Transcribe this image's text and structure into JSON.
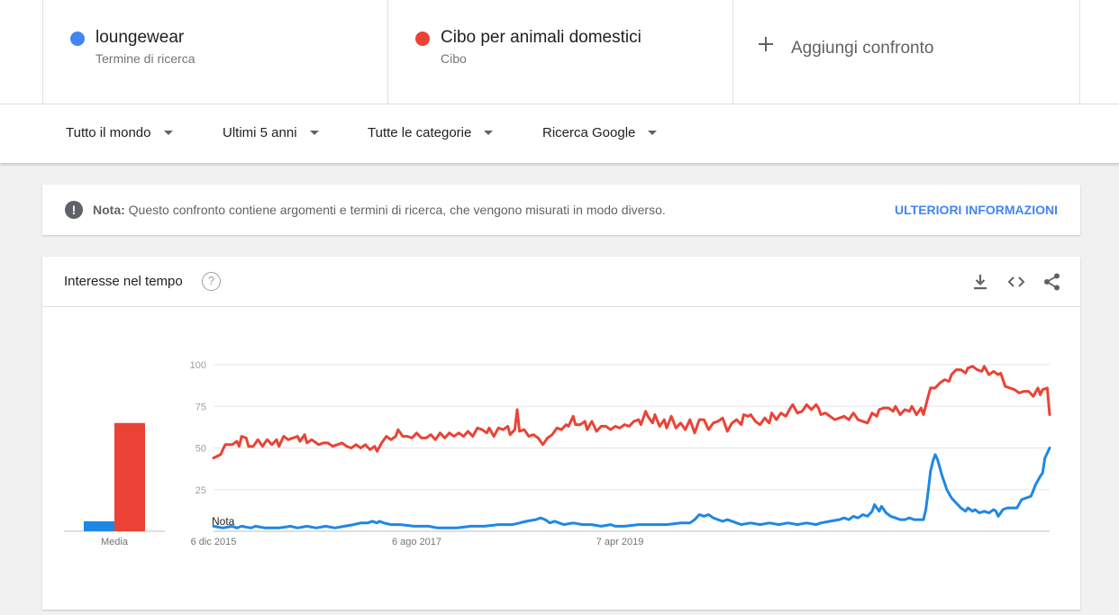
{
  "compare": {
    "terms": [
      {
        "name": "loungewear",
        "type": "Termine di ricerca",
        "color": "#4285f4"
      },
      {
        "name": "Cibo per animali domestici",
        "type": "Cibo",
        "color": "#ea4335"
      }
    ],
    "add_label": "Aggiungi confronto"
  },
  "filters": {
    "region": "Tutto il mondo",
    "period": "Ultimi 5 anni",
    "category": "Tutte le categorie",
    "source": "Ricerca Google"
  },
  "note": {
    "bold": "Nota:",
    "text": "Questo confronto contiene argomenti e termini di ricerca, che vengono misurati in modo diverso.",
    "link": "ULTERIORI INFORMAZIONI"
  },
  "chart": {
    "title": "Interesse nel tempo",
    "help_icon": "help-circle-icon",
    "actions": [
      "download-icon",
      "embed-code-icon",
      "share-icon"
    ]
  },
  "chart_data": {
    "type": "line",
    "ylim": [
      0,
      100
    ],
    "yticks": [
      25,
      50,
      75,
      100
    ],
    "grid": true,
    "x_tick_labels": [
      {
        "label": "6 dic 2015",
        "index": 0
      },
      {
        "label": "6 ago 2017",
        "index": 87
      },
      {
        "label": "7 apr 2019",
        "index": 174
      }
    ],
    "annotation": {
      "label": "Nota",
      "index": 0
    },
    "average": {
      "label": "Media",
      "values": [
        {
          "name": "loungewear",
          "value": 6
        },
        {
          "name": "Cibo per animali domestici",
          "value": 65
        }
      ]
    },
    "series": [
      {
        "name": "Cibo per animali domestici",
        "color": "#ea4335",
        "keys": [
          [
            0,
            44
          ],
          [
            3,
            46
          ],
          [
            5,
            52
          ],
          [
            8,
            52
          ],
          [
            10,
            54
          ],
          [
            11,
            51
          ],
          [
            12,
            57
          ],
          [
            14,
            56
          ],
          [
            15,
            51
          ],
          [
            17,
            51
          ],
          [
            19,
            55
          ],
          [
            21,
            51
          ],
          [
            23,
            55
          ],
          [
            25,
            52
          ],
          [
            27,
            55
          ],
          [
            28,
            51
          ],
          [
            30,
            57
          ],
          [
            32,
            55
          ],
          [
            34,
            56
          ],
          [
            36,
            57
          ],
          [
            37,
            54
          ],
          [
            39,
            58
          ],
          [
            40,
            53
          ],
          [
            42,
            55
          ],
          [
            45,
            52
          ],
          [
            47,
            53
          ],
          [
            49,
            53
          ],
          [
            51,
            51
          ],
          [
            53,
            52
          ],
          [
            55,
            53
          ],
          [
            57,
            51
          ],
          [
            59,
            50
          ],
          [
            61,
            52
          ],
          [
            63,
            50
          ],
          [
            65,
            52
          ],
          [
            67,
            49
          ],
          [
            69,
            51
          ],
          [
            70,
            48
          ],
          [
            72,
            53
          ],
          [
            74,
            57
          ],
          [
            76,
            55
          ],
          [
            78,
            57
          ],
          [
            79,
            61
          ],
          [
            81,
            57
          ],
          [
            83,
            57
          ],
          [
            85,
            56
          ],
          [
            87,
            59
          ],
          [
            89,
            56
          ],
          [
            91,
            56
          ],
          [
            93,
            58
          ],
          [
            95,
            55
          ],
          [
            97,
            59
          ],
          [
            99,
            56
          ],
          [
            101,
            59
          ],
          [
            103,
            57
          ],
          [
            105,
            59
          ],
          [
            107,
            57
          ],
          [
            109,
            60
          ],
          [
            111,
            57
          ],
          [
            113,
            62
          ],
          [
            115,
            61
          ],
          [
            117,
            59
          ],
          [
            118,
            62
          ],
          [
            120,
            57
          ],
          [
            122,
            62
          ],
          [
            124,
            61
          ],
          [
            126,
            63
          ],
          [
            127,
            58
          ],
          [
            129,
            61
          ],
          [
            130,
            73
          ],
          [
            131,
            60
          ],
          [
            133,
            61
          ],
          [
            135,
            57
          ],
          [
            137,
            58
          ],
          [
            139,
            56
          ],
          [
            141,
            52
          ],
          [
            143,
            56
          ],
          [
            145,
            58
          ],
          [
            147,
            62
          ],
          [
            149,
            61
          ],
          [
            151,
            64
          ],
          [
            152,
            63
          ],
          [
            154,
            69
          ],
          [
            155,
            64
          ],
          [
            157,
            64
          ],
          [
            159,
            66
          ],
          [
            160,
            61
          ],
          [
            162,
            66
          ],
          [
            164,
            60
          ],
          [
            166,
            63
          ],
          [
            168,
            63
          ],
          [
            170,
            61
          ],
          [
            172,
            63
          ],
          [
            174,
            62
          ],
          [
            176,
            64
          ],
          [
            178,
            63
          ],
          [
            180,
            66
          ],
          [
            182,
            67
          ],
          [
            183,
            64
          ],
          [
            185,
            72
          ],
          [
            186,
            69
          ],
          [
            188,
            65
          ],
          [
            189,
            70
          ],
          [
            191,
            63
          ],
          [
            193,
            67
          ],
          [
            194,
            62
          ],
          [
            196,
            69
          ],
          [
            198,
            62
          ],
          [
            200,
            65
          ],
          [
            202,
            61
          ],
          [
            204,
            67
          ],
          [
            206,
            59
          ],
          [
            208,
            67
          ],
          [
            210,
            67
          ],
          [
            212,
            61
          ],
          [
            214,
            65
          ],
          [
            216,
            66
          ],
          [
            218,
            68
          ],
          [
            220,
            60
          ],
          [
            222,
            65
          ],
          [
            224,
            67
          ],
          [
            226,
            64
          ],
          [
            227,
            70
          ],
          [
            229,
            69
          ],
          [
            230,
            70
          ],
          [
            232,
            66
          ],
          [
            234,
            64
          ],
          [
            236,
            68
          ],
          [
            238,
            65
          ],
          [
            239,
            71
          ],
          [
            241,
            67
          ],
          [
            243,
            71
          ],
          [
            245,
            69
          ],
          [
            247,
            74
          ],
          [
            248,
            76
          ],
          [
            250,
            71
          ],
          [
            252,
            72
          ],
          [
            254,
            76
          ],
          [
            256,
            73
          ],
          [
            258,
            76
          ],
          [
            259,
            74
          ],
          [
            260,
            70
          ],
          [
            262,
            71
          ],
          [
            264,
            69
          ],
          [
            266,
            67
          ],
          [
            268,
            68
          ],
          [
            270,
            69
          ],
          [
            272,
            67
          ],
          [
            274,
            71
          ],
          [
            276,
            67
          ],
          [
            278,
            66
          ],
          [
            280,
            65
          ],
          [
            282,
            71
          ],
          [
            284,
            69
          ],
          [
            285,
            73
          ],
          [
            287,
            74
          ],
          [
            289,
            74
          ],
          [
            291,
            72
          ],
          [
            292,
            75
          ],
          [
            294,
            70
          ],
          [
            296,
            73
          ],
          [
            298,
            72
          ],
          [
            299,
            75
          ],
          [
            301,
            70
          ],
          [
            303,
            74
          ],
          [
            304,
            70
          ],
          [
            306,
            81
          ],
          [
            307,
            86
          ],
          [
            309,
            86
          ],
          [
            311,
            89
          ],
          [
            313,
            91
          ],
          [
            315,
            90
          ],
          [
            316,
            94
          ],
          [
            318,
            97
          ],
          [
            320,
            97
          ],
          [
            322,
            95
          ],
          [
            323,
            98
          ],
          [
            325,
            99
          ],
          [
            327,
            97
          ],
          [
            329,
            96
          ],
          [
            330,
            99
          ],
          [
            332,
            94
          ],
          [
            334,
            96
          ],
          [
            336,
            94
          ],
          [
            337,
            95
          ],
          [
            339,
            87
          ],
          [
            341,
            86
          ],
          [
            343,
            85
          ],
          [
            345,
            83
          ],
          [
            347,
            84
          ],
          [
            349,
            84
          ],
          [
            351,
            81
          ],
          [
            353,
            86
          ],
          [
            354,
            82
          ],
          [
            355,
            85
          ],
          [
            357,
            86
          ],
          [
            358,
            70
          ]
        ]
      },
      {
        "name": "loungewear",
        "color": "#1e88e5",
        "keys": [
          [
            0,
            3
          ],
          [
            4,
            2
          ],
          [
            8,
            3
          ],
          [
            10,
            2
          ],
          [
            12,
            3
          ],
          [
            16,
            2
          ],
          [
            18,
            3
          ],
          [
            22,
            2
          ],
          [
            28,
            2
          ],
          [
            33,
            3
          ],
          [
            36,
            2
          ],
          [
            40,
            3
          ],
          [
            44,
            2
          ],
          [
            48,
            3
          ],
          [
            52,
            2
          ],
          [
            56,
            3
          ],
          [
            60,
            4
          ],
          [
            63,
            5
          ],
          [
            66,
            5
          ],
          [
            68,
            6
          ],
          [
            70,
            5
          ],
          [
            71,
            6
          ],
          [
            73,
            5
          ],
          [
            76,
            4
          ],
          [
            80,
            4
          ],
          [
            86,
            3
          ],
          [
            92,
            3
          ],
          [
            96,
            2
          ],
          [
            104,
            2
          ],
          [
            110,
            3
          ],
          [
            116,
            3
          ],
          [
            122,
            4
          ],
          [
            128,
            4
          ],
          [
            134,
            6
          ],
          [
            138,
            7
          ],
          [
            140,
            8
          ],
          [
            142,
            7
          ],
          [
            144,
            5
          ],
          [
            146,
            6
          ],
          [
            150,
            4
          ],
          [
            154,
            5
          ],
          [
            158,
            4
          ],
          [
            162,
            4
          ],
          [
            166,
            3
          ],
          [
            170,
            4
          ],
          [
            172,
            3
          ],
          [
            176,
            3
          ],
          [
            182,
            4
          ],
          [
            188,
            4
          ],
          [
            194,
            4
          ],
          [
            200,
            5
          ],
          [
            204,
            5
          ],
          [
            206,
            7
          ],
          [
            208,
            10
          ],
          [
            210,
            9
          ],
          [
            212,
            10
          ],
          [
            214,
            8
          ],
          [
            216,
            7
          ],
          [
            218,
            6
          ],
          [
            220,
            7
          ],
          [
            222,
            6
          ],
          [
            226,
            4
          ],
          [
            230,
            5
          ],
          [
            234,
            4
          ],
          [
            238,
            5
          ],
          [
            242,
            4
          ],
          [
            246,
            5
          ],
          [
            250,
            4
          ],
          [
            254,
            5
          ],
          [
            258,
            4
          ],
          [
            260,
            5
          ],
          [
            264,
            6
          ],
          [
            268,
            7
          ],
          [
            270,
            8
          ],
          [
            272,
            7
          ],
          [
            274,
            9
          ],
          [
            276,
            8
          ],
          [
            278,
            10
          ],
          [
            280,
            9
          ],
          [
            282,
            12
          ],
          [
            283,
            16
          ],
          [
            285,
            12
          ],
          [
            286,
            15
          ],
          [
            288,
            11
          ],
          [
            290,
            9
          ],
          [
            294,
            7
          ],
          [
            296,
            7
          ],
          [
            298,
            8
          ],
          [
            300,
            7
          ],
          [
            302,
            7
          ],
          [
            304,
            7
          ],
          [
            305,
            13
          ],
          [
            306,
            24
          ],
          [
            307,
            36
          ],
          [
            308,
            42
          ],
          [
            309,
            46
          ],
          [
            310,
            43
          ],
          [
            312,
            33
          ],
          [
            314,
            25
          ],
          [
            316,
            20
          ],
          [
            318,
            17
          ],
          [
            320,
            14
          ],
          [
            322,
            12
          ],
          [
            323,
            14
          ],
          [
            325,
            12
          ],
          [
            326,
            13
          ],
          [
            328,
            11
          ],
          [
            330,
            12
          ],
          [
            332,
            11
          ],
          [
            334,
            13
          ],
          [
            335,
            12
          ],
          [
            336,
            9
          ],
          [
            338,
            13
          ],
          [
            340,
            14
          ],
          [
            342,
            14
          ],
          [
            344,
            14
          ],
          [
            346,
            19
          ],
          [
            348,
            20
          ],
          [
            350,
            21
          ],
          [
            352,
            28
          ],
          [
            354,
            33
          ],
          [
            355,
            35
          ],
          [
            356,
            44
          ],
          [
            358,
            50
          ]
        ]
      }
    ]
  }
}
